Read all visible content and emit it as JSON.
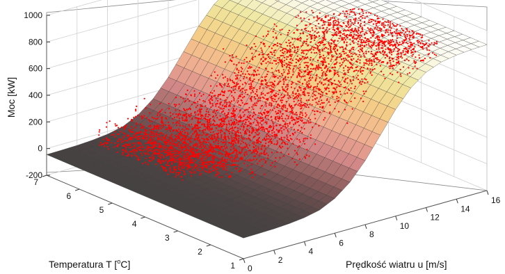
{
  "chart_data": {
    "type": "scatter",
    "subtype": "3d-surface-with-scatter",
    "title": "",
    "zlabel": "Moc [kW]",
    "xlabel": "Prędkość wiatru u [m/s]",
    "ylabel": "Temperatura T [°C]",
    "zlabel_parts": {
      "text": "Moc [kW]"
    },
    "ylabel_parts": {
      "prefix": "Temperatura T [",
      "sup": "o",
      "suffix": "C]"
    },
    "z_ticks": [
      "1000",
      "800",
      "600",
      "400",
      "200",
      "0",
      "-200"
    ],
    "z_tick_values": [
      1000,
      800,
      600,
      400,
      200,
      0,
      -200
    ],
    "zlim": [
      -200,
      1000
    ],
    "x_ticks": [
      "0",
      "2",
      "4",
      "6",
      "8",
      "10",
      "12",
      "14",
      "16"
    ],
    "x_tick_values": [
      0,
      2,
      4,
      6,
      8,
      10,
      12,
      14,
      16
    ],
    "xlim": [
      0,
      16
    ],
    "y_ticks": [
      "1",
      "2",
      "3",
      "4",
      "5",
      "6",
      "7"
    ],
    "y_tick_values": [
      1,
      2,
      3,
      4,
      5,
      6,
      7
    ],
    "ylim": [
      1,
      7
    ],
    "grid": true,
    "surface": {
      "description_values": "power curve over wind speed, nearly constant in temperature",
      "wind_speed_samples": [
        0,
        1,
        2,
        3,
        4,
        5,
        6,
        7,
        8,
        9,
        10,
        11,
        12,
        13,
        14,
        15,
        16
      ],
      "power_kw": [
        -45,
        -43,
        -40,
        -33,
        -20,
        5,
        60,
        150,
        280,
        440,
        600,
        730,
        815,
        860,
        880,
        890,
        895
      ],
      "colormap": [
        "#3f3f3f",
        "#8a5a5a",
        "#d98c8c",
        "#f2b38f",
        "#f5cf86",
        "#efe79e",
        "#ffffff"
      ]
    },
    "scatter_series": [
      {
        "name": "",
        "color": "#ff0000",
        "point_clusters": [
          {
            "u": 4.5,
            "T": 5.5,
            "p": 150
          },
          {
            "u": 6.0,
            "T": 5.0,
            "p": 250
          },
          {
            "u": 7.5,
            "T": 4.5,
            "p": 450
          },
          {
            "u": 9.0,
            "T": 4.0,
            "p": 600
          },
          {
            "u": 11.0,
            "T": 3.5,
            "p": 550
          },
          {
            "u": 13.0,
            "T": 3.0,
            "p": 500
          }
        ]
      }
    ]
  }
}
